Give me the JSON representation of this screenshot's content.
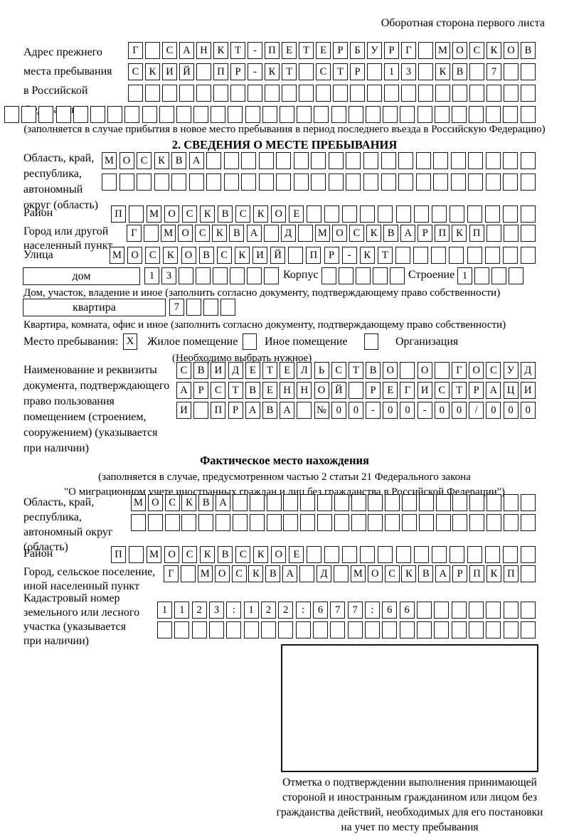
{
  "header_note": "Оборотная сторона первого листа",
  "prev_address": {
    "label_lines": [
      "Адрес прежнего",
      "места пребывания",
      "в Российской",
      "Федерации"
    ],
    "rows": [
      {
        "text": "Г САНКТ-ПЕТЕРБУРГ МОСКОВ",
        "count": 24
      },
      {
        "text": "СКИЙ ПР-КТ СТР 13 КВ 7",
        "count": 24
      },
      {
        "text": "",
        "count": 24
      },
      {
        "text": "",
        "count": 31
      }
    ],
    "caption": "(заполняется в случае прибытия в новое место пребывания в период последнего въезда в Российскую Федерацию)"
  },
  "section2": {
    "title": "2. СВЕДЕНИЯ О МЕСТЕ ПРЕБЫВАНИЯ",
    "oblast": {
      "label_lines": [
        "Область, край,",
        "республика,",
        "автономный",
        "округ (область)"
      ],
      "rows": [
        {
          "text": "МОСКВА",
          "count": 25
        },
        {
          "text": "",
          "count": 25
        }
      ]
    },
    "rayon": {
      "label": "Район",
      "row": {
        "text": "П МОСКВСКОЕ",
        "count": 24
      }
    },
    "gorod": {
      "label_lines": [
        "Город или другой",
        "населенный пункт"
      ],
      "row": {
        "text": "Г МОСКВА Д МОСКВАРПКП",
        "count": 24
      }
    },
    "ulitsa": {
      "label": "Улица",
      "row": {
        "text": "МОСКОВСКИЙ ПР-КТ",
        "count": 24
      }
    },
    "dom": {
      "label": "дом",
      "cells": {
        "text": "13",
        "count": 8
      },
      "korpus_label": "Корпус",
      "korpus_cells": {
        "text": "",
        "count": 5
      },
      "stroenie_label": "Строение",
      "stroenie_cells": {
        "text": "1",
        "count": 4
      },
      "caption": "Дом, участок, владение и иное (заполнить согласно документу, подтверждающему право собственности)"
    },
    "kvartira": {
      "label": "квартира",
      "cells": {
        "text": "7",
        "count": 4
      },
      "caption": "Квартира, комната, офис и иное (заполнить согласно документу, подтверждающему право собственности)"
    },
    "residence": {
      "label": "Место пребывания:",
      "options": [
        {
          "label": "Жилое помещение",
          "mark": "X"
        },
        {
          "label": "Иное помещение",
          "mark": ""
        },
        {
          "label": "Организация",
          "mark": ""
        }
      ],
      "note": "(Необходимо выбрать нужное)"
    },
    "document": {
      "label_lines": [
        "Наименование и реквизиты",
        "документа, подтверждающего",
        "право пользования",
        "помещением (строением,",
        "сооружением) (указывается",
        "при наличии)"
      ],
      "rows": [
        {
          "text": "СВИДЕТЕЛЬСТВО О ГОСУД",
          "count": 21
        },
        {
          "text": "АРСТВЕННОЙ РЕГИСТРАЦИ",
          "count": 21
        },
        {
          "text": "И ПРАВА №00-00-00/000",
          "count": 21
        }
      ]
    }
  },
  "actual_location": {
    "title": "Фактическое место нахождения",
    "note_lines": [
      "(заполняется в случае, предусмотренном частью 2 статьи 21 Федерального закона",
      "\"О миграционном учете иностранных граждан и лиц без гражданства в Российской Федерации\")"
    ],
    "oblast": {
      "label_lines": [
        "Область, край,",
        "республика,",
        "автономный округ",
        "(область)"
      ],
      "rows": [
        {
          "text": "МОСКВА",
          "count": 24
        },
        {
          "text": "",
          "count": 24
        }
      ]
    },
    "rayon": {
      "label": "Район",
      "row": {
        "text": "П МОСКВСКОЕ",
        "count": 24
      }
    },
    "gorod": {
      "label_lines": [
        "Город, сельское поселение,",
        "иной населенный пункт"
      ],
      "row": {
        "text": "Г МОСКВА Д МОСКВАРПКП",
        "count": 22
      }
    },
    "kadastr": {
      "label_lines": [
        "Кадастровый номер",
        "земельного или лесного",
        "участка (указывается",
        "при наличии)"
      ],
      "rows": [
        {
          "text": "1123:122:677:66",
          "count": 22
        },
        {
          "text": "",
          "count": 22
        }
      ]
    },
    "stamp_caption_lines": [
      "Отметка о подтверждении выполнения принимающей",
      "стороной и иностранным гражданином или лицом без",
      "гражданства действий, необходимых для его постановки",
      "на учет по месту пребывания"
    ]
  }
}
